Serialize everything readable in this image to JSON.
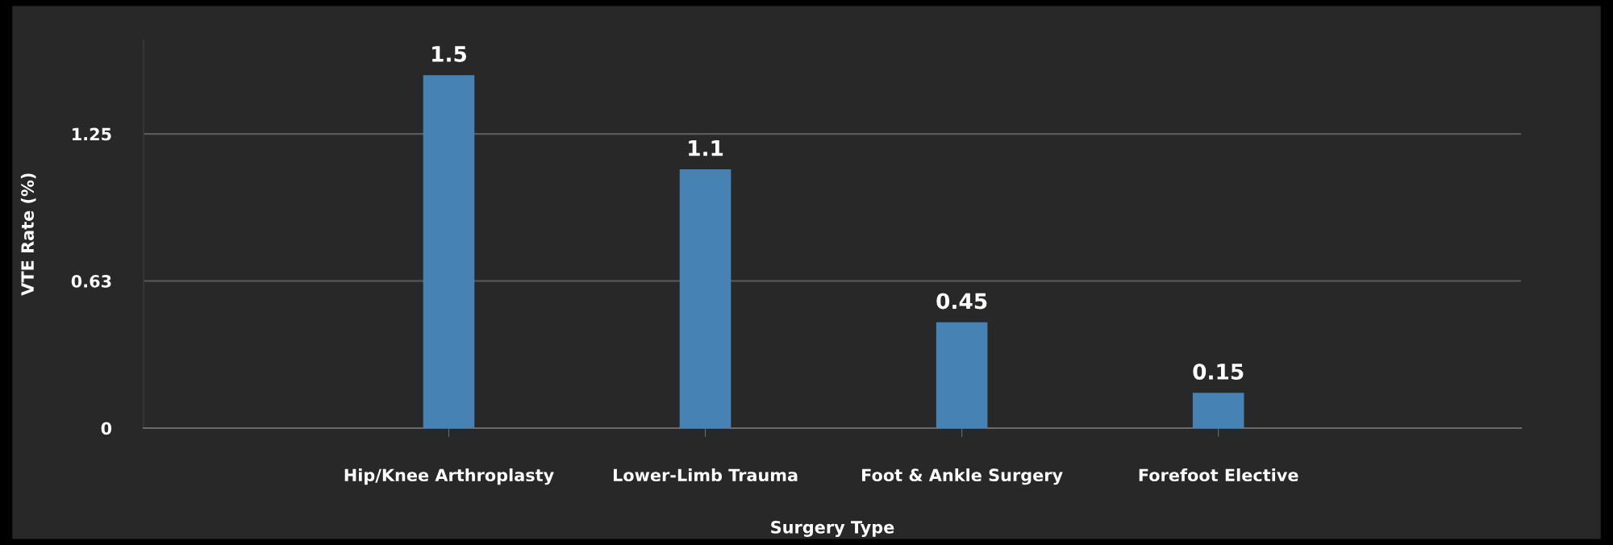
{
  "chart_data": {
    "type": "bar",
    "xlabel": "Surgery Type",
    "ylabel": "VTE Rate (%)",
    "categories": [
      "Hip/Knee Arthroplasty",
      "Lower-Limb Trauma",
      "Foot & Ankle Surgery",
      "Forefoot Elective"
    ],
    "values": [
      1.5,
      1.1,
      0.45,
      0.15
    ],
    "color": "#4682b4",
    "ylim": [
      0,
      1.65
    ],
    "yticks": [
      0,
      {
        "value": 0.625,
        "label": "0.63"
      },
      1.25
    ],
    "grid": "y",
    "data_labels": true
  }
}
